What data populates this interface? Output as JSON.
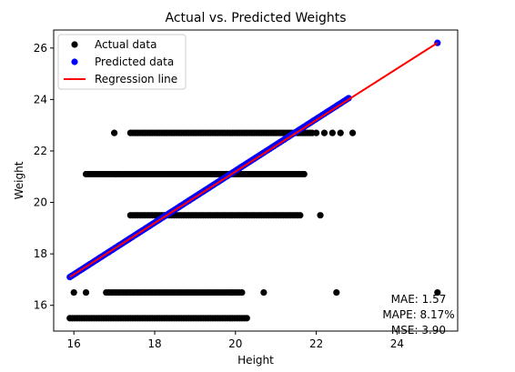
{
  "chart_data": {
    "type": "scatter",
    "title": "Actual vs. Predicted Weights",
    "xlabel": "Height",
    "ylabel": "Weight",
    "xlim": [
      15.5,
      25.5
    ],
    "ylim": [
      15.0,
      26.7
    ],
    "xticks": [
      16,
      18,
      20,
      22,
      24
    ],
    "yticks": [
      16,
      18,
      20,
      22,
      24,
      26
    ],
    "grid": false,
    "legend_position": "top-left",
    "colors": {
      "actual": "#000000",
      "predicted": "#0000ff",
      "regression": "#ff0000"
    },
    "series": [
      {
        "name": "Actual data",
        "kind": "points",
        "bands": [
          {
            "y": 22.7,
            "x_from": 17.4,
            "x_to": 21.9,
            "step": 0.06
          },
          {
            "y": 21.1,
            "x_from": 16.3,
            "x_to": 21.7,
            "step": 0.06
          },
          {
            "y": 19.5,
            "x_from": 17.4,
            "x_to": 21.6,
            "step": 0.06
          },
          {
            "y": 16.5,
            "x_from": 16.8,
            "x_to": 20.2,
            "step": 0.06
          },
          {
            "y": 15.5,
            "x_from": 15.9,
            "x_to": 20.3,
            "step": 0.06
          }
        ],
        "points": [
          [
            17.0,
            22.7
          ],
          [
            22.0,
            22.7
          ],
          [
            22.2,
            22.7
          ],
          [
            22.4,
            22.7
          ],
          [
            22.6,
            22.7
          ],
          [
            22.9,
            22.7
          ],
          [
            22.1,
            19.5
          ],
          [
            16.0,
            16.5
          ],
          [
            16.3,
            16.5
          ],
          [
            20.7,
            16.5
          ],
          [
            22.5,
            16.5
          ],
          [
            25.0,
            16.5
          ]
        ]
      },
      {
        "name": "Predicted data",
        "kind": "points",
        "line_from": [
          15.9,
          17.1
        ],
        "line_to": [
          22.8,
          24.05
        ],
        "step": 0.05,
        "points": [
          [
            25.0,
            26.2
          ]
        ]
      },
      {
        "name": "Regression line",
        "kind": "line",
        "points": [
          [
            15.9,
            17.1
          ],
          [
            25.0,
            26.2
          ]
        ]
      }
    ],
    "annotations": [
      "MAE: 1.57",
      "MAPE: 8.17%",
      "MSE: 3.90"
    ]
  }
}
